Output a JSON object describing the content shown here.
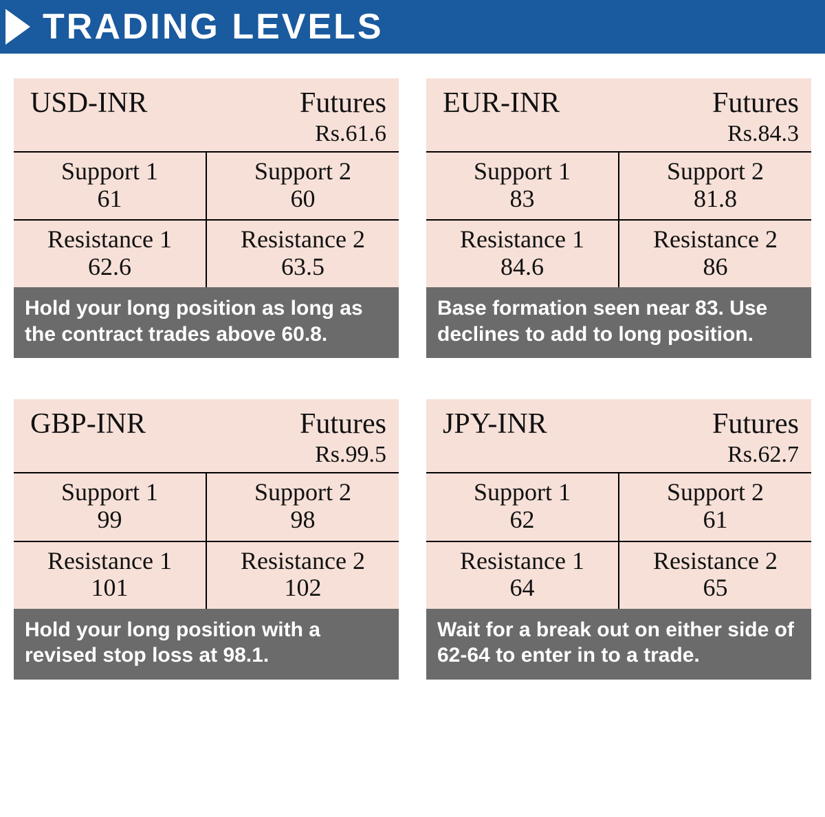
{
  "header": {
    "title": "TRADING LEVELS"
  },
  "labels": {
    "futures": "Futures",
    "support1": "Support 1",
    "support2": "Support 2",
    "resistance1": "Resistance 1",
    "resistance2": "Resistance 2"
  },
  "colors": {
    "header_bg": "#1a5a9e",
    "header_text": "#ffffff",
    "card_bg": "#f6e0d8",
    "note_bg": "#6b6b6b",
    "note_text": "#ffffff",
    "border": "#000000",
    "text": "#111111"
  },
  "cards": [
    {
      "pair": "USD-INR",
      "price": "Rs.61.6",
      "support1": "61",
      "support2": "60",
      "resistance1": "62.6",
      "resistance2": "63.5",
      "note": "Hold your long position as long as the contract trades above 60.8."
    },
    {
      "pair": "EUR-INR",
      "price": "Rs.84.3",
      "support1": "83",
      "support2": "81.8",
      "resistance1": "84.6",
      "resistance2": "86",
      "note": "Base formation seen near 83. Use declines to add to long position."
    },
    {
      "pair": "GBP-INR",
      "price": "Rs.99.5",
      "support1": "99",
      "support2": "98",
      "resistance1": "101",
      "resistance2": "102",
      "note": "Hold your long position with a revised stop loss at 98.1."
    },
    {
      "pair": "JPY-INR",
      "price": "Rs.62.7",
      "support1": "62",
      "support2": "61",
      "resistance1": "64",
      "resistance2": "65",
      "note": "Wait for a break out on either side of 62-64 to enter in to a trade."
    }
  ]
}
